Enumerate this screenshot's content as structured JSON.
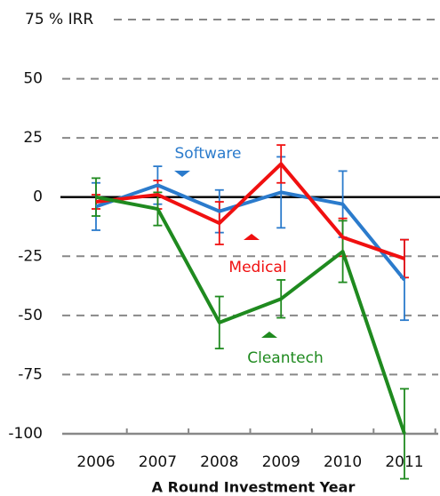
{
  "chart_data": {
    "type": "line",
    "xlabel": "A Round Investment Year",
    "categories": [
      "2006",
      "2007",
      "2008",
      "2009",
      "2010",
      "2011"
    ],
    "series": [
      {
        "name": "Software",
        "color": "#2b7bcc",
        "values": [
          -4,
          5,
          -6,
          2,
          -3,
          -35
        ],
        "errors": [
          10,
          8,
          9,
          15,
          14,
          17
        ]
      },
      {
        "name": "Medical",
        "color": "#f01010",
        "values": [
          -2,
          1,
          -11,
          14,
          -17,
          -26
        ],
        "errors": [
          3,
          6,
          9,
          8,
          8,
          8
        ]
      },
      {
        "name": "Cleantech",
        "color": "#1f8a1f",
        "values": [
          0,
          -5,
          -53,
          -43,
          -23,
          -100
        ],
        "errors": [
          8,
          7,
          11,
          8,
          13,
          19
        ]
      }
    ],
    "ylim": [
      -100,
      75
    ],
    "yticks": [
      -100,
      -75,
      -50,
      -25,
      0,
      25,
      50,
      {
        "value": 75,
        "label": "75 % IRR"
      }
    ],
    "grid": true
  }
}
